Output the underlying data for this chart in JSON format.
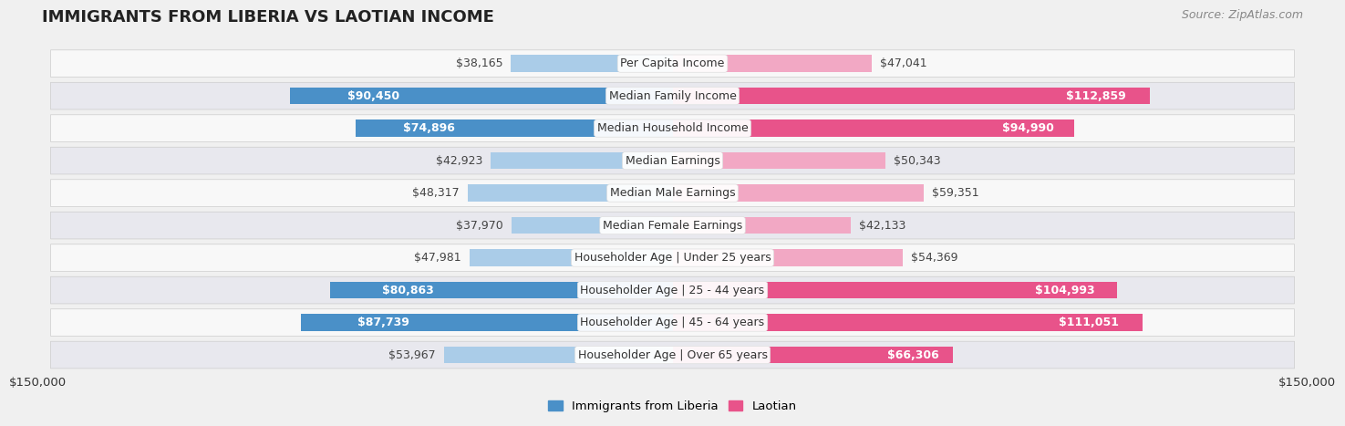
{
  "title": "IMMIGRANTS FROM LIBERIA VS LAOTIAN INCOME",
  "source": "Source: ZipAtlas.com",
  "categories": [
    "Per Capita Income",
    "Median Family Income",
    "Median Household Income",
    "Median Earnings",
    "Median Male Earnings",
    "Median Female Earnings",
    "Householder Age | Under 25 years",
    "Householder Age | 25 - 44 years",
    "Householder Age | 45 - 64 years",
    "Householder Age | Over 65 years"
  ],
  "liberia_values": [
    38165,
    90450,
    74896,
    42923,
    48317,
    37970,
    47981,
    80863,
    87739,
    53967
  ],
  "laotian_values": [
    47041,
    112859,
    94990,
    50343,
    59351,
    42133,
    54369,
    104993,
    111051,
    66306
  ],
  "liberia_labels": [
    "$38,165",
    "$90,450",
    "$74,896",
    "$42,923",
    "$48,317",
    "$37,970",
    "$47,981",
    "$80,863",
    "$87,739",
    "$53,967"
  ],
  "laotian_labels": [
    "$47,041",
    "$112,859",
    "$94,990",
    "$50,343",
    "$59,351",
    "$42,133",
    "$54,369",
    "$104,993",
    "$111,051",
    "$66,306"
  ],
  "liberia_color_dark": "#4a90c8",
  "liberia_color_light": "#aacce8",
  "laotian_color_dark": "#e8538a",
  "laotian_color_light": "#f2a8c4",
  "liberia_threshold": 65000,
  "laotian_threshold": 65000,
  "max_value": 150000,
  "bg_color": "#f0f0f0",
  "row_bg_even": "#f8f8f8",
  "row_bg_odd": "#e8e8ee",
  "label_fontsize": 9.0,
  "title_fontsize": 13,
  "source_fontsize": 9,
  "axis_label": "$150,000",
  "legend_label_liberia": "Immigrants from Liberia",
  "legend_label_laotian": "Laotian"
}
